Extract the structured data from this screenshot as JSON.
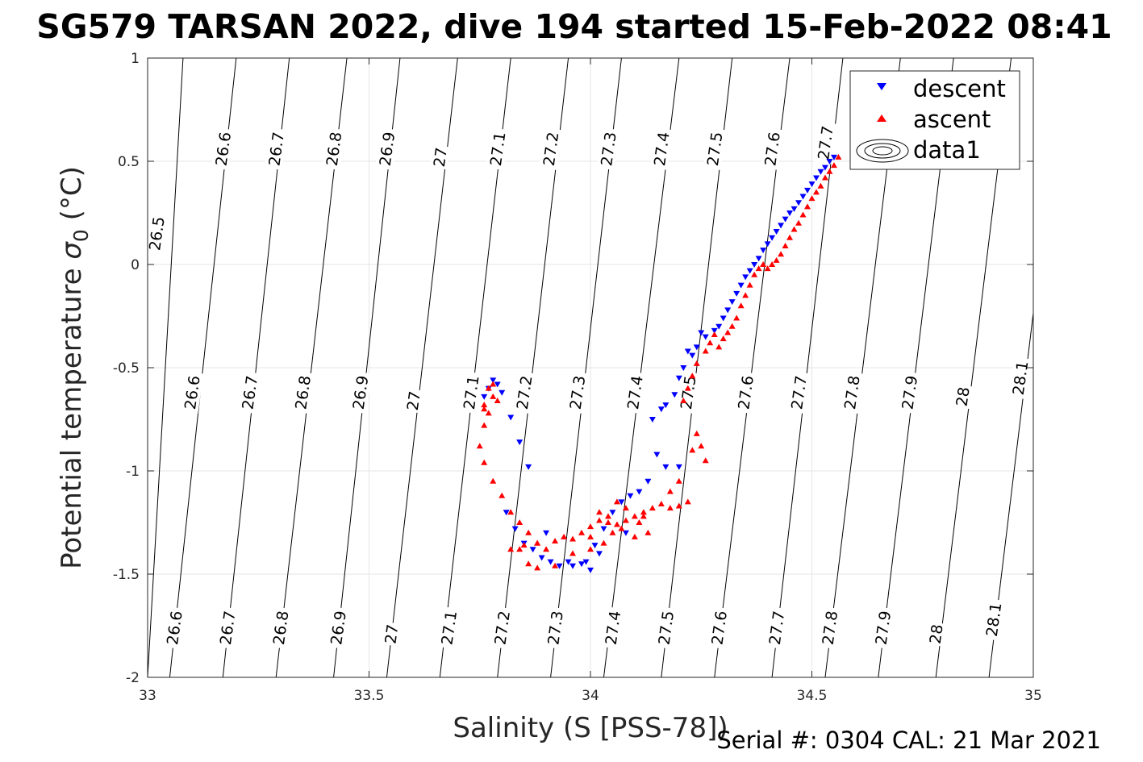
{
  "chart_data": {
    "type": "scatter",
    "title": "SG579 TARSAN 2022, dive 194 started 15-Feb-2022 08:41",
    "xlabel": "Salinity (S [PSS-78])",
    "ylabel_main": "Potential temperature ",
    "ylabel_sigma": "σ",
    "ylabel_sub": "0",
    "ylabel_unit": " (°C)",
    "xlim": [
      33,
      35
    ],
    "ylim": [
      -2,
      1
    ],
    "x_ticks": [
      33,
      33.5,
      34,
      34.5,
      35
    ],
    "y_ticks": [
      -2,
      -1.5,
      -1,
      -0.5,
      0,
      0.5,
      1
    ],
    "x_tick_labels": [
      "33",
      "33.5",
      "34",
      "34.5",
      "35"
    ],
    "y_tick_labels": [
      "-2",
      "-1.5",
      "-1",
      "-0.5",
      "0",
      "0.5",
      "1"
    ],
    "grid": true,
    "legend_position": "top-right",
    "legend": [
      "descent",
      "ascent",
      "data1"
    ],
    "footer": "Serial #: 0304  CAL: 21 Mar 2021",
    "colors": {
      "descent": "#0000ff",
      "ascent": "#ff0000",
      "contour": "#000000",
      "grid": "#e6e6e6",
      "axis": "#262626"
    },
    "density_contours": {
      "levels": [
        26.5,
        26.6,
        26.7,
        26.8,
        26.9,
        27,
        27.1,
        27.2,
        27.3,
        27.4,
        27.5,
        27.6,
        27.7,
        27.8,
        27.9,
        28,
        28.1
      ],
      "salinity_at_top": [
        33.08,
        33.2,
        33.32,
        33.45,
        33.57,
        33.7,
        33.82,
        33.95,
        34.07,
        34.2,
        34.32,
        34.45,
        34.57,
        34.7,
        34.82,
        34.95,
        35.07
      ],
      "salinity_at_bottom": [
        32.93,
        33.05,
        33.17,
        33.29,
        33.42,
        33.54,
        33.66,
        33.79,
        33.91,
        34.03,
        34.16,
        34.28,
        34.41,
        34.53,
        34.65,
        34.78,
        34.9
      ],
      "labels": [
        {
          "text": "26.5",
          "s": 33.02,
          "t": 0.15
        },
        {
          "text": "26.6",
          "s": 33.17,
          "t": 0.56
        },
        {
          "text": "26.7",
          "s": 33.29,
          "t": 0.56
        },
        {
          "text": "26.8",
          "s": 33.42,
          "t": 0.56
        },
        {
          "text": "26.9",
          "s": 33.54,
          "t": 0.56
        },
        {
          "text": "27",
          "s": 33.66,
          "t": 0.52
        },
        {
          "text": "27.1",
          "s": 33.79,
          "t": 0.56
        },
        {
          "text": "27.2",
          "s": 33.91,
          "t": 0.56
        },
        {
          "text": "27.3",
          "s": 34.04,
          "t": 0.56
        },
        {
          "text": "27.4",
          "s": 34.16,
          "t": 0.56
        },
        {
          "text": "27.5",
          "s": 34.28,
          "t": 0.56
        },
        {
          "text": "27.6",
          "s": 34.41,
          "t": 0.56
        },
        {
          "text": "27.7",
          "s": 34.53,
          "t": 0.59
        },
        {
          "text": "26.6",
          "s": 33.1,
          "t": -0.62
        },
        {
          "text": "26.7",
          "s": 33.23,
          "t": -0.62
        },
        {
          "text": "26.8",
          "s": 33.35,
          "t": -0.62
        },
        {
          "text": "26.9",
          "s": 33.48,
          "t": -0.62
        },
        {
          "text": "27",
          "s": 33.6,
          "t": -0.66
        },
        {
          "text": "27.1",
          "s": 33.73,
          "t": -0.62
        },
        {
          "text": "27.2",
          "s": 33.85,
          "t": -0.62
        },
        {
          "text": "27.3",
          "s": 33.97,
          "t": -0.62
        },
        {
          "text": "27.4",
          "s": 34.1,
          "t": -0.62
        },
        {
          "text": "27.5",
          "s": 34.22,
          "t": -0.62
        },
        {
          "text": "27.6",
          "s": 34.35,
          "t": -0.62
        },
        {
          "text": "27.7",
          "s": 34.47,
          "t": -0.62
        },
        {
          "text": "27.8",
          "s": 34.59,
          "t": -0.62
        },
        {
          "text": "27.9",
          "s": 34.72,
          "t": -0.62
        },
        {
          "text": "28",
          "s": 34.84,
          "t": -0.64
        },
        {
          "text": "28.1",
          "s": 34.97,
          "t": -0.55
        },
        {
          "text": "26.6",
          "s": 33.06,
          "t": -1.76
        },
        {
          "text": "26.7",
          "s": 33.18,
          "t": -1.76
        },
        {
          "text": "26.8",
          "s": 33.3,
          "t": -1.76
        },
        {
          "text": "26.9",
          "s": 33.43,
          "t": -1.76
        },
        {
          "text": "27",
          "s": 33.55,
          "t": -1.79
        },
        {
          "text": "27.1",
          "s": 33.68,
          "t": -1.76
        },
        {
          "text": "27.2",
          "s": 33.8,
          "t": -1.76
        },
        {
          "text": "27.3",
          "s": 33.92,
          "t": -1.76
        },
        {
          "text": "27.4",
          "s": 34.05,
          "t": -1.76
        },
        {
          "text": "27.5",
          "s": 34.17,
          "t": -1.76
        },
        {
          "text": "27.6",
          "s": 34.29,
          "t": -1.76
        },
        {
          "text": "27.7",
          "s": 34.42,
          "t": -1.76
        },
        {
          "text": "27.8",
          "s": 34.54,
          "t": -1.76
        },
        {
          "text": "27.9",
          "s": 34.66,
          "t": -1.76
        },
        {
          "text": "28",
          "s": 34.78,
          "t": -1.79
        },
        {
          "text": "28.1",
          "s": 34.91,
          "t": -1.72
        }
      ]
    },
    "series": [
      {
        "name": "descent",
        "marker": "triangle-down",
        "points": [
          [
            34.55,
            0.52
          ],
          [
            34.54,
            0.5
          ],
          [
            34.53,
            0.47
          ],
          [
            34.52,
            0.45
          ],
          [
            34.51,
            0.42
          ],
          [
            34.5,
            0.39
          ],
          [
            34.49,
            0.36
          ],
          [
            34.48,
            0.33
          ],
          [
            34.47,
            0.3
          ],
          [
            34.46,
            0.27
          ],
          [
            34.45,
            0.25
          ],
          [
            34.44,
            0.22
          ],
          [
            34.43,
            0.19
          ],
          [
            34.42,
            0.16
          ],
          [
            34.41,
            0.13
          ],
          [
            34.4,
            0.1
          ],
          [
            34.39,
            0.07
          ],
          [
            34.38,
            0.03
          ],
          [
            34.37,
            0.0
          ],
          [
            34.36,
            -0.03
          ],
          [
            34.35,
            -0.06
          ],
          [
            34.34,
            -0.1
          ],
          [
            34.33,
            -0.14
          ],
          [
            34.32,
            -0.18
          ],
          [
            34.31,
            -0.22
          ],
          [
            34.3,
            -0.26
          ],
          [
            34.29,
            -0.3
          ],
          [
            34.28,
            -0.32
          ],
          [
            34.26,
            -0.35
          ],
          [
            34.25,
            -0.33
          ],
          [
            34.24,
            -0.4
          ],
          [
            34.23,
            -0.44
          ],
          [
            34.22,
            -0.42
          ],
          [
            34.21,
            -0.5
          ],
          [
            34.2,
            -0.55
          ],
          [
            34.19,
            -0.63
          ],
          [
            34.17,
            -0.68
          ],
          [
            34.16,
            -0.7
          ],
          [
            34.14,
            -0.75
          ],
          [
            34.15,
            -0.92
          ],
          [
            34.17,
            -0.98
          ],
          [
            34.2,
            -0.98
          ],
          [
            34.13,
            -1.05
          ],
          [
            34.11,
            -1.1
          ],
          [
            34.09,
            -1.12
          ],
          [
            34.07,
            -1.15
          ],
          [
            34.05,
            -1.2
          ],
          [
            34.03,
            -1.28
          ],
          [
            34.01,
            -1.36
          ],
          [
            33.99,
            -1.44
          ],
          [
            34.0,
            -1.48
          ],
          [
            33.98,
            -1.45
          ],
          [
            33.96,
            -1.46
          ],
          [
            33.93,
            -1.46
          ],
          [
            33.91,
            -1.44
          ],
          [
            33.89,
            -1.42
          ],
          [
            33.87,
            -1.38
          ],
          [
            33.85,
            -1.35
          ],
          [
            33.83,
            -1.28
          ],
          [
            33.81,
            -1.2
          ],
          [
            33.86,
            -0.98
          ],
          [
            33.84,
            -0.86
          ],
          [
            33.82,
            -0.74
          ],
          [
            33.8,
            -0.62
          ],
          [
            33.79,
            -0.58
          ],
          [
            33.78,
            -0.56
          ],
          [
            33.77,
            -0.6
          ],
          [
            33.76,
            -0.64
          ],
          [
            33.9,
            -1.3
          ],
          [
            33.95,
            -1.44
          ],
          [
            34.02,
            -1.4
          ],
          [
            34.08,
            -1.3
          ]
        ]
      },
      {
        "name": "ascent",
        "marker": "triangle-up",
        "points": [
          [
            34.56,
            0.52
          ],
          [
            34.55,
            0.48
          ],
          [
            34.54,
            0.45
          ],
          [
            34.53,
            0.42
          ],
          [
            34.52,
            0.38
          ],
          [
            34.51,
            0.35
          ],
          [
            34.5,
            0.32
          ],
          [
            34.49,
            0.28
          ],
          [
            34.48,
            0.24
          ],
          [
            34.47,
            0.2
          ],
          [
            34.46,
            0.17
          ],
          [
            34.45,
            0.13
          ],
          [
            34.44,
            0.09
          ],
          [
            34.43,
            0.05
          ],
          [
            34.42,
            0.02
          ],
          [
            34.41,
            0.0
          ],
          [
            34.4,
            -0.02
          ],
          [
            34.39,
            0.0
          ],
          [
            34.38,
            -0.02
          ],
          [
            34.37,
            -0.05
          ],
          [
            34.36,
            -0.1
          ],
          [
            34.35,
            -0.15
          ],
          [
            34.34,
            -0.2
          ],
          [
            34.33,
            -0.26
          ],
          [
            34.32,
            -0.3
          ],
          [
            34.31,
            -0.33
          ],
          [
            34.3,
            -0.36
          ],
          [
            34.29,
            -0.4
          ],
          [
            34.28,
            -0.34
          ],
          [
            34.27,
            -0.38
          ],
          [
            34.26,
            -0.42
          ],
          [
            34.24,
            -0.48
          ],
          [
            34.23,
            -0.54
          ],
          [
            34.22,
            -0.6
          ],
          [
            34.21,
            -0.66
          ],
          [
            34.24,
            -0.82
          ],
          [
            34.25,
            -0.88
          ],
          [
            34.26,
            -0.95
          ],
          [
            34.23,
            -0.9
          ],
          [
            34.2,
            -1.05
          ],
          [
            34.18,
            -1.1
          ],
          [
            34.22,
            -1.15
          ],
          [
            34.2,
            -1.17
          ],
          [
            34.18,
            -1.18
          ],
          [
            34.16,
            -1.16
          ],
          [
            34.14,
            -1.18
          ],
          [
            34.12,
            -1.2
          ],
          [
            34.1,
            -1.22
          ],
          [
            34.08,
            -1.24
          ],
          [
            34.06,
            -1.26
          ],
          [
            34.04,
            -1.25
          ],
          [
            34.02,
            -1.24
          ],
          [
            34.0,
            -1.27
          ],
          [
            33.98,
            -1.3
          ],
          [
            33.96,
            -1.33
          ],
          [
            33.94,
            -1.32
          ],
          [
            33.92,
            -1.34
          ],
          [
            33.96,
            -1.4
          ],
          [
            34.0,
            -1.38
          ],
          [
            34.03,
            -1.35
          ],
          [
            34.05,
            -1.3
          ],
          [
            34.07,
            -1.28
          ],
          [
            34.1,
            -1.32
          ],
          [
            34.12,
            -1.22
          ],
          [
            33.92,
            -1.46
          ],
          [
            33.88,
            -1.47
          ],
          [
            33.86,
            -1.45
          ],
          [
            33.84,
            -1.38
          ],
          [
            33.86,
            -1.3
          ],
          [
            33.85,
            -1.36
          ],
          [
            33.82,
            -1.38
          ],
          [
            33.88,
            -1.35
          ],
          [
            33.84,
            -1.25
          ],
          [
            33.82,
            -1.2
          ],
          [
            33.8,
            -1.12
          ],
          [
            33.78,
            -1.05
          ],
          [
            33.76,
            -0.96
          ],
          [
            33.75,
            -0.88
          ],
          [
            33.76,
            -0.78
          ],
          [
            33.76,
            -0.68
          ],
          [
            33.77,
            -0.6
          ],
          [
            33.78,
            -0.64
          ],
          [
            33.77,
            -0.72
          ],
          [
            33.76,
            -0.7
          ],
          [
            33.78,
            -0.58
          ],
          [
            33.79,
            -0.66
          ],
          [
            33.88,
            -1.35
          ],
          [
            33.9,
            -1.38
          ],
          [
            34.0,
            -1.32
          ],
          [
            34.02,
            -1.2
          ],
          [
            34.04,
            -1.22
          ],
          [
            34.06,
            -1.15
          ],
          [
            34.08,
            -1.18
          ],
          [
            34.11,
            -1.25
          ],
          [
            34.13,
            -1.3
          ]
        ]
      }
    ]
  }
}
